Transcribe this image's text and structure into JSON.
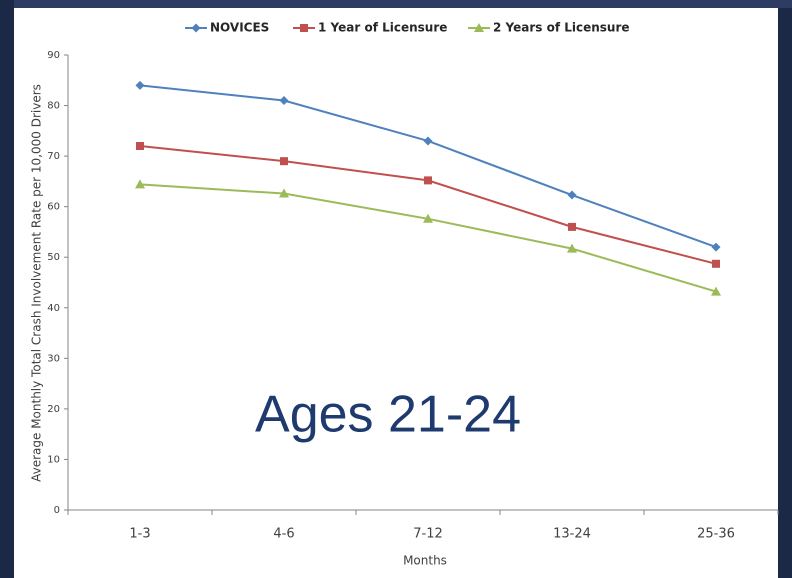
{
  "chart_data": {
    "type": "line",
    "title": "Ages 21-24",
    "x_label": "Months",
    "y_label": "Average Monthly Total Crash Involvement Rate per 10,000 Drivers",
    "categories": [
      "1-3",
      "4-6",
      "7-12",
      "13-24",
      "25-36"
    ],
    "series": [
      {
        "name": "NOVICES",
        "color": "#4f81bd",
        "marker": "diamond",
        "values": [
          84,
          81,
          73,
          62.3,
          52
        ]
      },
      {
        "name": "1 Year of Licensure",
        "color": "#c0504d",
        "marker": "square",
        "values": [
          72,
          69,
          65.2,
          56,
          48.7
        ]
      },
      {
        "name": "2 Years of Licensure",
        "color": "#9bbb59",
        "marker": "triangle",
        "values": [
          64.4,
          62.6,
          57.6,
          51.7,
          43.2
        ]
      }
    ],
    "ylim": [
      0,
      90
    ],
    "yticks": [
      0,
      10,
      20,
      30,
      40,
      50,
      60,
      70,
      80,
      90
    ],
    "grid": false,
    "legend": "top"
  }
}
